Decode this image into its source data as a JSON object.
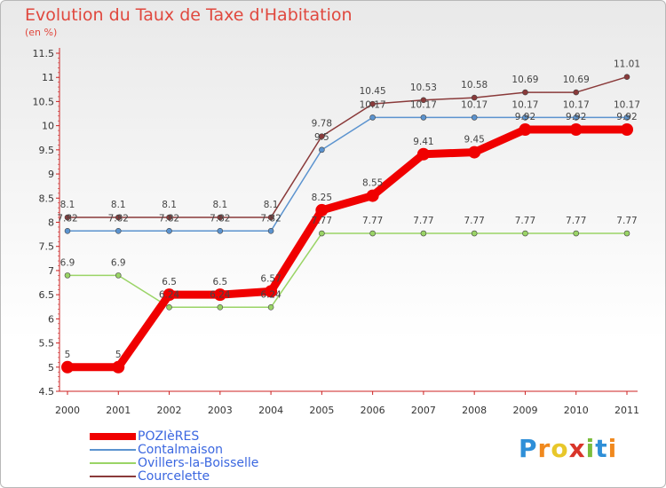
{
  "title": "Evolution du Taux de Taxe d'Habitation",
  "subtitle": "(en %)",
  "logo": {
    "letters": [
      "P",
      "r",
      "o",
      "x",
      "i",
      "t",
      "i"
    ],
    "colors": [
      "#2f8fd8",
      "#f0891e",
      "#e8c72a",
      "#d9352a",
      "#7bbd3c",
      "#2f8fd8",
      "#f0891e"
    ]
  },
  "chart_data": {
    "type": "line",
    "title": "Evolution du Taux de Taxe d'Habitation",
    "ylabel": "(en %)",
    "xlabel": "",
    "ylim": [
      4.5,
      11.5
    ],
    "yticks": [
      "4.5",
      "5",
      "5.5",
      "6",
      "6.5",
      "7",
      "7.5",
      "8",
      "8.5",
      "9",
      "9.5",
      "10",
      "10.5",
      "11",
      "11.5"
    ],
    "categories": [
      "2000",
      "2001",
      "2002",
      "2003",
      "2004",
      "2005",
      "2006",
      "2007",
      "2008",
      "2009",
      "2010",
      "2011"
    ],
    "legend_position": "bottom-left",
    "grid": false,
    "series": [
      {
        "name": "POZIèRES",
        "color": "#f00000",
        "width": 9,
        "values": [
          5,
          5,
          6.5,
          6.5,
          6.57,
          8.25,
          8.55,
          9.41,
          9.45,
          9.92,
          9.92,
          9.92
        ],
        "labels": [
          "5",
          "5",
          "6.5",
          "6.5",
          "6.57",
          "8.25",
          "8.55",
          "9.41",
          "9.45",
          "9.92",
          "9.92",
          "9.92"
        ]
      },
      {
        "name": "Contalmaison",
        "color": "#5b93cf",
        "width": 1.5,
        "values": [
          7.82,
          7.82,
          7.82,
          7.82,
          7.82,
          9.5,
          10.17,
          10.17,
          10.17,
          10.17,
          10.17,
          10.17
        ],
        "labels": [
          "7.82",
          "7.82",
          "7.82",
          "7.82",
          "7.82",
          "9.5",
          "10.17",
          "10.17",
          "10.17",
          "10.17",
          "10.17",
          "10.17"
        ]
      },
      {
        "name": "Ovillers-la-Boisselle",
        "color": "#9ad466",
        "width": 1.5,
        "values": [
          6.9,
          6.9,
          6.24,
          6.24,
          6.24,
          7.77,
          7.77,
          7.77,
          7.77,
          7.77,
          7.77,
          7.77
        ],
        "labels": [
          "6.9",
          "6.9",
          "6.24",
          "6.24",
          "6.24",
          "7.77",
          "7.77",
          "7.77",
          "7.77",
          "7.77",
          "7.77",
          "7.77"
        ]
      },
      {
        "name": "Courcelette",
        "color": "#8a3a3a",
        "width": 1.5,
        "values": [
          8.1,
          8.1,
          8.1,
          8.1,
          8.1,
          9.78,
          10.45,
          10.53,
          10.58,
          10.69,
          10.69,
          11.01
        ],
        "labels": [
          "8.1",
          "8.1",
          "8.1",
          "8.1",
          "8.1",
          "9.78",
          "10.45",
          "10.53",
          "10.58",
          "10.69",
          "10.69",
          "11.01"
        ]
      }
    ]
  }
}
